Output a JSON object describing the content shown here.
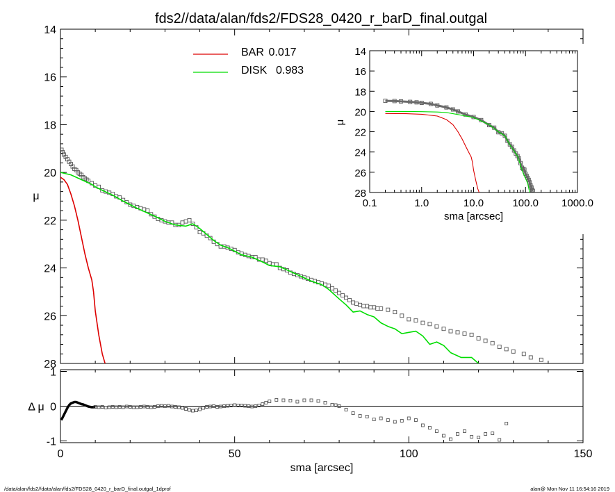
{
  "title": "fds2//data/alan/fds2/FDS28_0420_r_barD_final.outgal",
  "footer": {
    "left": "/data/alan/fds2//data/alan/fds2/FDS28_0420_r_barD_final.outgal_1dprof",
    "right": "alan@  Mon Nov 11 16:54:16 2019"
  },
  "colors": {
    "bar": "#dd0000",
    "disk": "#00dd00",
    "data": "#555555",
    "axes": "#000000"
  },
  "chart_data": [
    {
      "id": "main",
      "type": "line",
      "xlabel": "",
      "ylabel": "μ",
      "xlim": [
        0,
        150
      ],
      "ylim": [
        28,
        14
      ],
      "y_inverted": true,
      "yticks": [
        14,
        16,
        18,
        20,
        22,
        24,
        26,
        28
      ],
      "xticks_shared": [
        0,
        50,
        100,
        150
      ],
      "legend": {
        "placement": "top-center",
        "entries": [
          {
            "name": "BAR",
            "value": "0.017",
            "color": "#dd0000"
          },
          {
            "name": "DISK",
            "value": "0.983",
            "color": "#00dd00"
          }
        ]
      },
      "series": [
        {
          "name": "BAR",
          "color": "#dd0000",
          "x": [
            0,
            1,
            2,
            3,
            4,
            5,
            6,
            7,
            8,
            9,
            9.5,
            10,
            11,
            12,
            12.8
          ],
          "y": [
            20.2,
            20.3,
            20.5,
            20.9,
            21.4,
            22.0,
            22.7,
            23.4,
            24.0,
            24.5,
            25.0,
            25.8,
            26.8,
            27.6,
            28.0
          ]
        },
        {
          "name": "DISK",
          "color": "#00dd00",
          "x": [
            0,
            3,
            6,
            9,
            10,
            12,
            15,
            18,
            20,
            22,
            25,
            28,
            30,
            33,
            36,
            38,
            40,
            42,
            44,
            46,
            48,
            50,
            52,
            55,
            58,
            60,
            63,
            66,
            69,
            72,
            75,
            77,
            80,
            82,
            84,
            86,
            88,
            90,
            92,
            94,
            96,
            98,
            100,
            102,
            104,
            106,
            108,
            110,
            112,
            115,
            118,
            120
          ],
          "y": [
            20.0,
            20.1,
            20.3,
            20.5,
            20.6,
            20.75,
            20.95,
            21.2,
            21.35,
            21.5,
            21.7,
            21.9,
            22.05,
            22.2,
            22.25,
            22.15,
            22.35,
            22.6,
            22.85,
            23.05,
            23.15,
            23.3,
            23.45,
            23.55,
            23.75,
            23.9,
            23.95,
            24.15,
            24.35,
            24.55,
            24.7,
            24.9,
            25.3,
            25.55,
            25.85,
            25.8,
            25.95,
            26.05,
            26.3,
            26.45,
            26.55,
            26.75,
            26.7,
            26.65,
            26.85,
            27.2,
            27.1,
            27.25,
            27.55,
            27.75,
            27.75,
            28.0
          ]
        }
      ],
      "data_points": {
        "name": "isophote",
        "x": [
          0.3,
          0.6,
          1.0,
          1.5,
          2.0,
          2.5,
          3.0,
          3.5,
          4.0,
          4.5,
          5.0,
          5.5,
          6.0,
          6.5,
          7.0,
          7.5,
          8.0,
          9.0,
          10,
          11,
          12,
          13,
          14,
          15,
          16,
          17,
          18,
          19,
          20,
          21,
          22,
          23,
          24,
          25,
          26,
          27,
          28,
          29,
          30,
          31,
          32,
          33,
          34,
          35,
          36,
          37,
          38,
          39,
          40,
          41,
          42,
          43,
          44,
          45,
          46,
          47,
          48,
          49,
          50,
          51,
          52,
          53,
          54,
          55,
          56,
          57,
          58,
          59,
          60,
          61,
          62,
          63,
          64,
          65,
          66,
          67,
          68,
          69,
          70,
          71,
          72,
          73,
          74,
          75,
          76,
          77,
          78,
          79,
          80,
          81,
          82,
          83,
          84,
          85,
          86,
          87,
          88,
          89,
          90,
          91,
          92,
          94,
          96,
          98,
          100,
          102,
          104,
          106,
          108,
          110,
          112,
          114,
          116,
          118,
          120,
          122,
          124,
          126,
          128,
          130,
          133,
          135,
          138
        ],
        "y": [
          19.05,
          19.15,
          19.25,
          19.35,
          19.45,
          19.55,
          19.65,
          19.75,
          19.85,
          19.9,
          20.0,
          20.05,
          20.1,
          20.2,
          20.25,
          20.3,
          20.35,
          20.45,
          20.55,
          20.6,
          20.75,
          20.8,
          20.85,
          20.9,
          21.0,
          21.05,
          21.15,
          21.25,
          21.35,
          21.4,
          21.45,
          21.5,
          21.55,
          21.6,
          21.75,
          21.85,
          21.95,
          22.0,
          22.05,
          22.1,
          22.1,
          22.2,
          22.2,
          22.1,
          22.05,
          22.0,
          22.15,
          22.3,
          22.5,
          22.55,
          22.65,
          22.75,
          22.9,
          23.0,
          23.1,
          23.1,
          23.15,
          23.2,
          23.25,
          23.35,
          23.4,
          23.45,
          23.5,
          23.55,
          23.55,
          23.65,
          23.65,
          23.7,
          23.8,
          23.85,
          23.85,
          24.0,
          24.05,
          24.1,
          24.2,
          24.25,
          24.3,
          24.35,
          24.4,
          24.45,
          24.5,
          24.55,
          24.6,
          24.65,
          24.7,
          24.75,
          24.85,
          24.95,
          25.05,
          25.15,
          25.25,
          25.35,
          25.45,
          25.5,
          25.55,
          25.6,
          25.6,
          25.65,
          25.65,
          25.7,
          25.7,
          25.75,
          25.85,
          26.0,
          26.15,
          26.2,
          26.3,
          26.35,
          26.45,
          26.55,
          26.65,
          26.7,
          26.75,
          26.8,
          26.95,
          27.05,
          27.15,
          27.3,
          27.4,
          27.5,
          27.6,
          27.75,
          27.85
        ]
      }
    },
    {
      "id": "residual",
      "type": "scatter",
      "xlabel": "sma [arcsec]",
      "ylabel": "Δ μ",
      "xlim": [
        0,
        150
      ],
      "ylim": [
        -1.05,
        1.05
      ],
      "xticks": [
        0,
        50,
        100,
        150
      ],
      "yticks": [
        -1,
        0,
        1
      ],
      "zero_line": true,
      "curve": {
        "name": "inner-residual",
        "x": [
          0.2,
          0.5,
          1.0,
          1.5,
          2.0,
          2.5,
          3.0,
          3.5,
          4.0,
          4.5,
          5.0,
          5.5,
          6.0,
          6.5,
          7.0,
          7.5,
          8.0,
          8.5,
          9.0,
          9.5,
          10.0
        ],
        "y": [
          -0.4,
          -0.35,
          -0.25,
          -0.15,
          -0.05,
          0.03,
          0.08,
          0.1,
          0.12,
          0.12,
          0.1,
          0.08,
          0.06,
          0.05,
          0.03,
          0.01,
          -0.01,
          -0.02,
          -0.03,
          -0.03,
          -0.02
        ]
      },
      "points": {
        "x": [
          10,
          11,
          12,
          13,
          14,
          15,
          16,
          17,
          18,
          19,
          20,
          21,
          22,
          23,
          24,
          25,
          26,
          27,
          28,
          29,
          30,
          31,
          32,
          33,
          34,
          35,
          36,
          37,
          38,
          39,
          40,
          41,
          42,
          43,
          44,
          45,
          46,
          47,
          48,
          49,
          50,
          51,
          52,
          53,
          54,
          55,
          56,
          57,
          58,
          59,
          60,
          62,
          64,
          66,
          68,
          70,
          72,
          74,
          76,
          78,
          79,
          80,
          82,
          84,
          86,
          88,
          90,
          92,
          94,
          96,
          98,
          100,
          102,
          104,
          106,
          108,
          110,
          112,
          114,
          116,
          118,
          120,
          122,
          124,
          126,
          128
        ],
        "y": [
          -0.02,
          -0.03,
          -0.02,
          -0.04,
          -0.03,
          -0.02,
          -0.03,
          -0.02,
          -0.03,
          -0.01,
          -0.02,
          -0.03,
          -0.03,
          -0.02,
          -0.01,
          -0.02,
          -0.03,
          -0.02,
          0.0,
          0.01,
          0.0,
          0.01,
          -0.01,
          -0.02,
          -0.03,
          -0.05,
          -0.08,
          -0.11,
          -0.13,
          -0.12,
          -0.09,
          -0.05,
          -0.02,
          -0.01,
          0.0,
          -0.02,
          -0.01,
          0.0,
          0.01,
          0.02,
          0.03,
          0.02,
          0.02,
          0.01,
          0.0,
          -0.01,
          0.0,
          0.02,
          0.06,
          0.1,
          0.14,
          0.18,
          0.17,
          0.16,
          0.13,
          0.17,
          0.17,
          0.15,
          0.1,
          0.04,
          0.03,
          0.0,
          -0.1,
          -0.2,
          -0.28,
          -0.3,
          -0.38,
          -0.35,
          -0.4,
          -0.45,
          -0.42,
          -0.35,
          -0.4,
          -0.55,
          -0.62,
          -0.72,
          -0.85,
          -0.95,
          -0.8,
          -0.72,
          -0.88,
          -0.9,
          -0.8,
          -0.78,
          -0.97,
          -0.5
        ]
      }
    },
    {
      "id": "inset",
      "type": "line",
      "xlabel": "sma [arcsec]",
      "ylabel": "μ",
      "x_scale": "log",
      "xlim": [
        0.1,
        1000
      ],
      "ylim": [
        28,
        14
      ],
      "y_inverted": true,
      "xticks": [
        0.1,
        1,
        10,
        100,
        1000
      ],
      "xtick_labels": [
        "0.1",
        "1.0",
        "10.0",
        "100.0",
        "1000.0"
      ],
      "yticks": [
        14,
        16,
        18,
        20,
        22,
        24,
        26,
        28
      ],
      "series": [
        {
          "name": "BAR",
          "color": "#dd0000",
          "x": [
            0.2,
            0.5,
            1,
            2,
            3,
            4,
            5,
            6,
            7,
            8,
            9,
            9.5,
            10,
            11,
            12,
            12.8
          ],
          "y": [
            20.2,
            20.22,
            20.27,
            20.45,
            20.8,
            21.3,
            22.0,
            22.7,
            23.4,
            24.0,
            24.5,
            25.0,
            25.8,
            26.8,
            27.6,
            28.0
          ]
        },
        {
          "name": "DISK",
          "color": "#00dd00",
          "x": [
            0.2,
            0.5,
            1,
            2,
            3,
            5,
            10,
            20,
            30,
            40,
            50,
            60,
            70,
            80,
            90,
            100,
            110,
            120
          ],
          "y": [
            20.0,
            20.0,
            20.02,
            20.05,
            20.1,
            20.3,
            20.6,
            21.3,
            22.0,
            22.4,
            23.3,
            23.9,
            24.4,
            25.3,
            26.1,
            26.6,
            27.1,
            28.0
          ]
        }
      ],
      "data_points": {
        "name": "isophote",
        "x": [
          0.2,
          0.3,
          0.4,
          0.6,
          0.8,
          1.0,
          1.5,
          2,
          3,
          4,
          5,
          7,
          10,
          14,
          20,
          25,
          30,
          35,
          40,
          45,
          50,
          55,
          60,
          65,
          70,
          75,
          80,
          85,
          90,
          95,
          100,
          105,
          110,
          115,
          120,
          125,
          130,
          135,
          138
        ],
        "y": [
          18.95,
          18.97,
          19.0,
          19.05,
          19.1,
          19.15,
          19.25,
          19.4,
          19.6,
          19.8,
          20.0,
          20.3,
          20.55,
          20.85,
          21.35,
          21.6,
          22.05,
          22.15,
          22.4,
          22.9,
          23.25,
          23.5,
          23.85,
          24.15,
          24.4,
          24.65,
          25.1,
          25.55,
          25.65,
          25.75,
          26.15,
          26.35,
          26.55,
          26.75,
          27.0,
          27.3,
          27.5,
          27.75,
          27.85
        ]
      }
    }
  ]
}
